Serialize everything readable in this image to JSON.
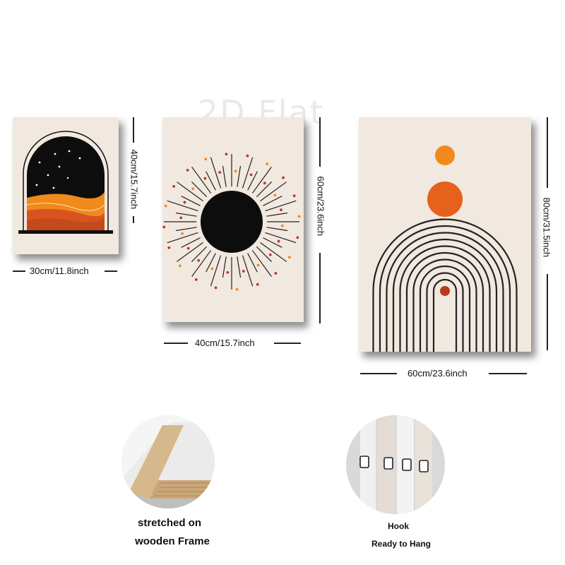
{
  "watermark": "2D Flat",
  "panels": [
    {
      "width_label": "30cm/11.8inch",
      "height_label": "40cm/15.7inch"
    },
    {
      "width_label": "40cm/15.7inch",
      "height_label": "60cm/23.6inch"
    },
    {
      "width_label": "60cm/23.6inch",
      "height_label": "80cm/31.5inch"
    }
  ],
  "features": {
    "frame_caption_line1": "stretched on",
    "frame_caption_line2": "wooden Frame",
    "hook_caption_line1": "Hook",
    "hook_caption_line2": "Ready to Hang"
  },
  "colors": {
    "canvas": "#f1e8df",
    "black": "#111111",
    "orange": "#f08a1c",
    "burnt": "#d9531e",
    "rust": "#b83a1c"
  }
}
